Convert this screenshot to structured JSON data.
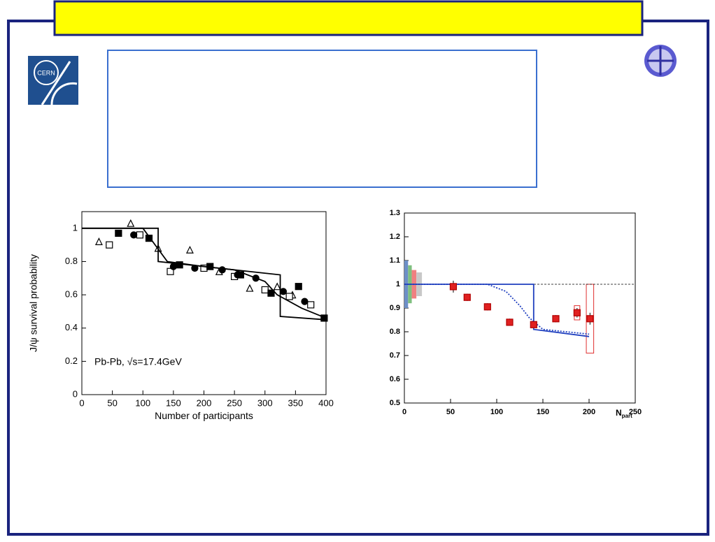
{
  "logo_text": "CERN",
  "chart_data": [
    {
      "type": "scatter",
      "x_label": "Number of participants",
      "y_label": "J/ψ survival probability",
      "annotation": "Pb-Pb, √s=17.4GeV",
      "xlim": [
        0,
        400
      ],
      "ylim": [
        0,
        1.1
      ],
      "xticks": [
        0,
        50,
        100,
        150,
        200,
        250,
        300,
        350,
        400
      ],
      "yticks": [
        0,
        0.2,
        0.4,
        0.6,
        0.8,
        1
      ],
      "series": [
        {
          "style": "triangle-open",
          "color": "#000000",
          "x": [
            28,
            80,
            125,
            177,
            225,
            275,
            320,
            345
          ],
          "values": [
            0.92,
            1.03,
            0.88,
            0.87,
            0.74,
            0.64,
            0.65,
            0.6
          ]
        },
        {
          "style": "square-open",
          "color": "#000000",
          "x": [
            45,
            95,
            145,
            200,
            250,
            300,
            340,
            375
          ],
          "values": [
            0.9,
            0.96,
            0.74,
            0.76,
            0.71,
            0.63,
            0.59,
            0.54
          ]
        },
        {
          "style": "square",
          "color": "#000000",
          "x": [
            60,
            110,
            160,
            210,
            260,
            310,
            355,
            397
          ],
          "values": [
            0.97,
            0.94,
            0.78,
            0.77,
            0.72,
            0.61,
            0.65,
            0.46
          ]
        },
        {
          "style": "circle",
          "color": "#000000",
          "x": [
            85,
            150,
            185,
            230,
            255,
            285,
            330,
            365
          ],
          "values": [
            0.96,
            0.77,
            0.76,
            0.75,
            0.72,
            0.7,
            0.62,
            0.56
          ]
        },
        {
          "style": "line",
          "color": "#000000",
          "x": [
            0,
            125,
            125,
            325,
            325,
            400
          ],
          "values": [
            1,
            1,
            0.8,
            0.72,
            0.47,
            0.45
          ]
        },
        {
          "style": "line",
          "color": "#000000",
          "x": [
            0,
            100,
            120,
            140,
            200,
            250,
            300,
            320,
            360,
            400
          ],
          "values": [
            1,
            1,
            0.9,
            0.8,
            0.77,
            0.75,
            0.68,
            0.6,
            0.52,
            0.46
          ]
        }
      ]
    },
    {
      "type": "scatter",
      "x_label": "N",
      "x_label_sub": "part",
      "xlim": [
        0,
        250
      ],
      "ylim": [
        0.5,
        1.3
      ],
      "xticks": [
        0,
        50,
        100,
        150,
        200,
        250
      ],
      "yticks": [
        0.5,
        0.6,
        0.7,
        0.8,
        0.9,
        1,
        1.1,
        1.2,
        1.3
      ],
      "bands": [
        {
          "color": "#6d8fc7",
          "x": [
            0,
            4
          ],
          "low": 0.9,
          "high": 1.1
        },
        {
          "color": "#7fbf7f",
          "x": [
            4,
            8
          ],
          "low": 0.92,
          "high": 1.08
        },
        {
          "color": "#f08080",
          "x": [
            8,
            13
          ],
          "low": 0.94,
          "high": 1.06
        },
        {
          "color": "#c8c8c8",
          "x": [
            13,
            19
          ],
          "low": 0.95,
          "high": 1.05
        }
      ],
      "boxes": [
        {
          "color": "#e03030",
          "x": [
            184,
            190
          ],
          "low": 0.85,
          "high": 0.91
        },
        {
          "color": "#e03030",
          "x": [
            197,
            205
          ],
          "low": 0.71,
          "high": 1.0
        }
      ],
      "series": [
        {
          "style": "dashed",
          "color": "#000000",
          "x": [
            0,
            250
          ],
          "values": [
            1,
            1
          ]
        },
        {
          "style": "line",
          "color": "#1f3fbf",
          "x": [
            0,
            140,
            140,
            200
          ],
          "values": [
            1,
            1,
            0.81,
            0.78
          ]
        },
        {
          "style": "dotted",
          "color": "#1f3fbf",
          "x": [
            0,
            90,
            110,
            125,
            135,
            150,
            200
          ],
          "values": [
            1,
            1,
            0.97,
            0.91,
            0.86,
            0.81,
            0.79
          ]
        },
        {
          "style": "square",
          "color": "#e02020",
          "x": [
            53,
            68,
            90,
            114,
            140,
            164,
            187,
            201
          ],
          "values": [
            0.99,
            0.945,
            0.905,
            0.84,
            0.83,
            0.855,
            0.88,
            0.855
          ],
          "errors": [
            0.025,
            0.015,
            0.015,
            0.015,
            0.012,
            0.015,
            0.02,
            0.025
          ]
        }
      ]
    }
  ]
}
